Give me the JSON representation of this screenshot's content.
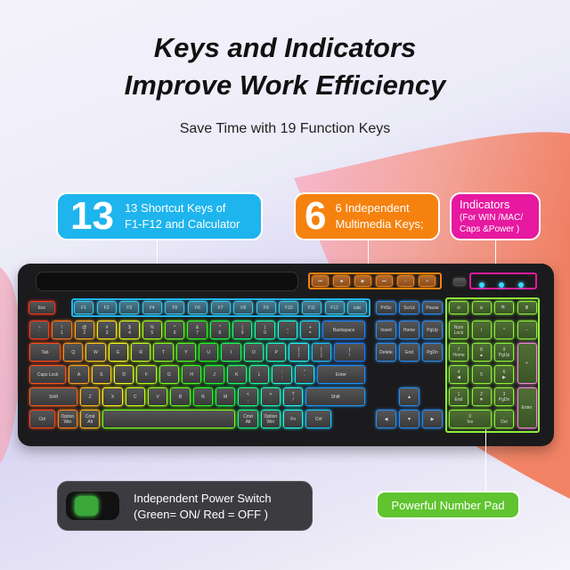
{
  "title_line1": "Keys and Indicators",
  "title_line2": "Improve Work Efficiency",
  "subtitle": "Save Time with 19 Function Keys",
  "callouts": {
    "shortcut": {
      "number": "13",
      "line1": "13 Shortcut Keys of",
      "line2": "F1-F12 and Calculator",
      "color": "#1eb4ee"
    },
    "multimedia": {
      "number": "6",
      "line1": "6 Independent",
      "line2": "Multimedia Keys;",
      "color": "#f5820f"
    },
    "indicators": {
      "line1": "Indicators",
      "line2": "(For  WIN /MAC/",
      "line3": "Caps &Power )",
      "color": "#e619a0"
    }
  },
  "power_switch": {
    "line1": "Independent Power Switch",
    "line2": "(Green= ON/ Red = OFF )"
  },
  "number_pad_label": "Powerful Number Pad",
  "keyboard": {
    "media_keys": [
      "⏮",
      "■",
      "▶",
      "⏭",
      "−",
      "+"
    ],
    "indicator_icons": [
      "win",
      "mac",
      "caps"
    ],
    "esc": "Esc",
    "fkeys": [
      "F1",
      "F2",
      "F3",
      "F4",
      "F5",
      "F6",
      "F7",
      "F8",
      "F9",
      "F10",
      "F11",
      "F12",
      "calc"
    ],
    "rows": [
      [
        "~\n`",
        "!\n1",
        "@\n2",
        "#\n3",
        "$\n4",
        "%\n5",
        "^\n6",
        "&\n7",
        "*\n8",
        "(\n9",
        ")\n0",
        "_\n-",
        "+\n=",
        "Backspace"
      ],
      [
        "Tab",
        "Q",
        "W",
        "E",
        "R",
        "T",
        "Y",
        "U",
        "I",
        "O",
        "P",
        "{\n[",
        "}\n]",
        "|\n\\"
      ],
      [
        "Caps Lock",
        "A",
        "S",
        "D",
        "F",
        "G",
        "H",
        "J",
        "K",
        "L",
        ":\n;",
        "\"\n'",
        "Enter"
      ],
      [
        "Shift",
        "Z",
        "X",
        "C",
        "V",
        "B",
        "N",
        "M",
        "<\n,",
        ">\n.",
        "?\n/",
        "Shift"
      ],
      [
        "Ctrl",
        "Option\nWin",
        "Cmd\nAlt",
        "",
        "Cmd\nAlt",
        "Option\nWin",
        "Fn",
        "Ctrl"
      ]
    ],
    "nav": [
      [
        "PrtSc",
        "ScrLk",
        "Pause"
      ],
      [
        "Insert",
        "Home",
        "PgUp"
      ],
      [
        "Delete",
        "End",
        "PgDn"
      ]
    ],
    "arrows": [
      "▲",
      "◀",
      "▼",
      "▶"
    ],
    "numpad": [
      [
        "⊖",
        "⊖",
        "🔍",
        "🖩"
      ],
      [
        "Num\nLock",
        "/",
        "*",
        "−"
      ],
      [
        "7\nHome",
        "8\n▲",
        "9\nPgUp",
        "+"
      ],
      [
        "4\n◀",
        "5",
        "6\n▶"
      ],
      [
        "1\nEnd",
        "2\n▼",
        "3\nPgDn",
        "Enter"
      ],
      [
        "0\nIns",
        ".\nDel"
      ]
    ]
  }
}
